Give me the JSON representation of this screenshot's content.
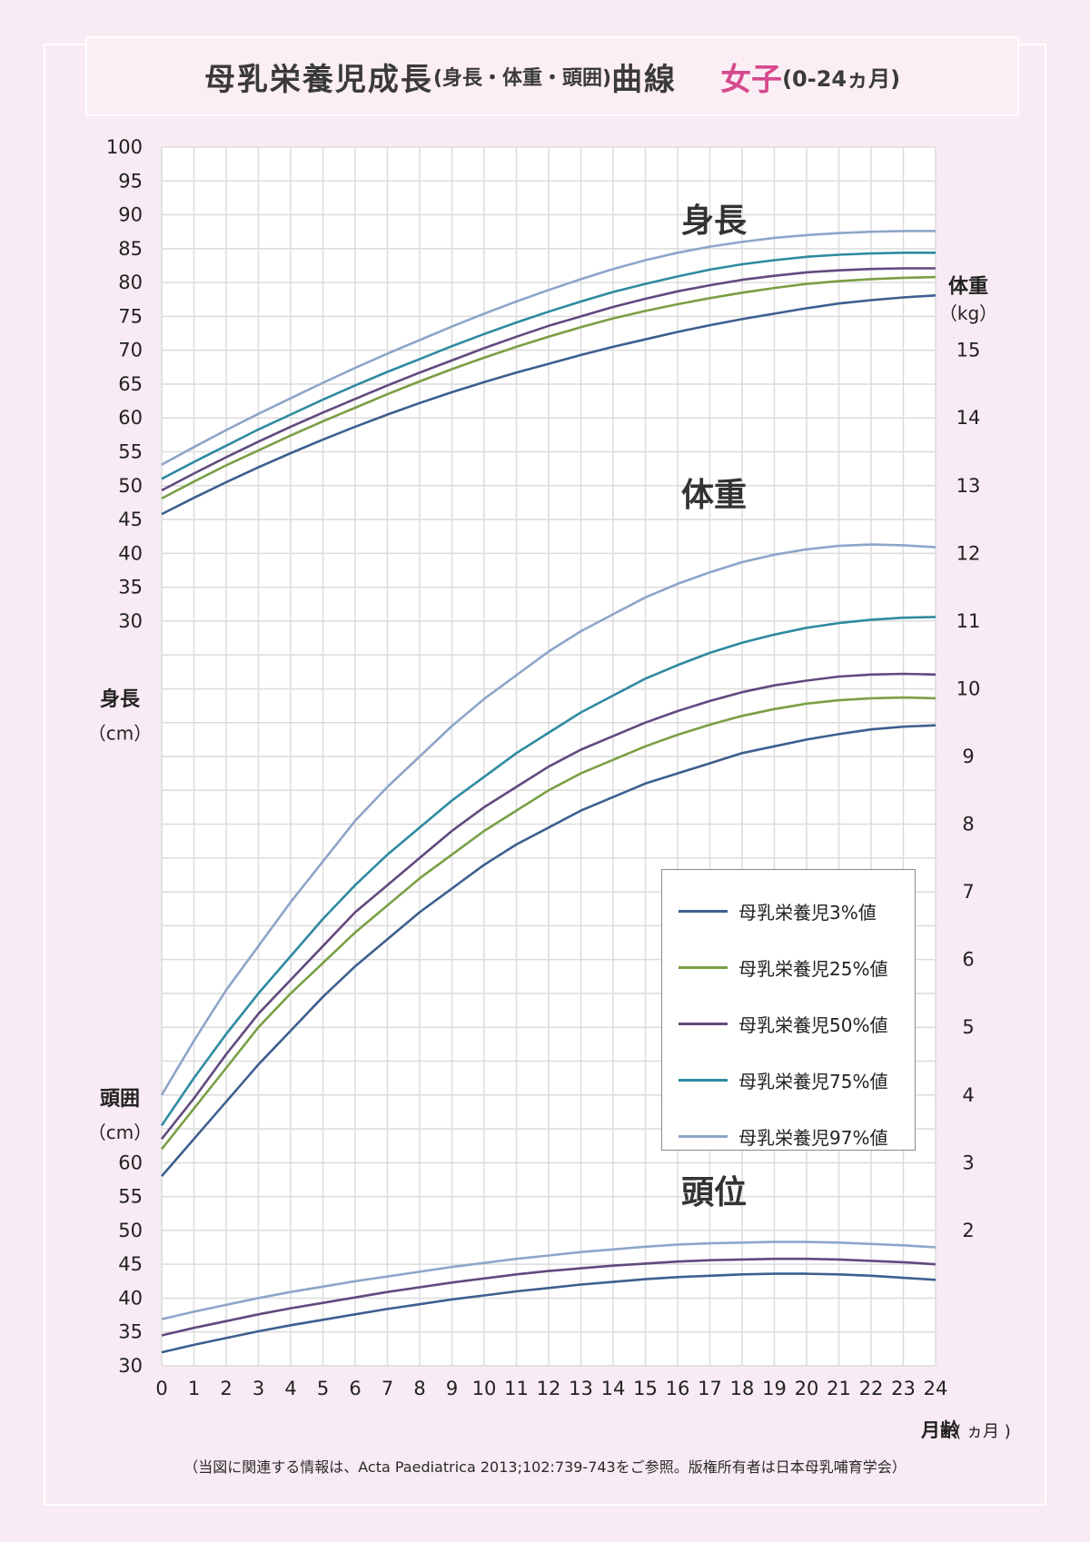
{
  "title": {
    "main": "母乳栄養児成長",
    "paren": "(身長・体重・頭囲)",
    "main2": "曲線",
    "girl": "女子",
    "range": "(0-24ヵ月)"
  },
  "footnote": "（当図に関連する情報は、Acta Paediatrica 2013;102:739-743をご参照。版権所有者は日本母乳哺育学会）",
  "colors": {
    "p3": "#3d5f8f",
    "p25": "#7a9f45",
    "p50": "#62497f",
    "p75": "#2f8aa1",
    "p97": "#8ea5c9",
    "grid": "#dcdcdc",
    "title_accent": "#d74a8e"
  },
  "legend": [
    {
      "label": "母乳栄養児3%値",
      "key": "p3"
    },
    {
      "label": "母乳栄養児25%値",
      "key": "p25"
    },
    {
      "label": "母乳栄養児50%値",
      "key": "p50"
    },
    {
      "label": "母乳栄養児75%値",
      "key": "p75"
    },
    {
      "label": "母乳栄養児97%値",
      "key": "p97"
    }
  ],
  "chart_data": {
    "type": "line",
    "x_label": "月齢",
    "x_unit": "( ヵ月 )",
    "x": [
      0,
      1,
      2,
      3,
      4,
      5,
      6,
      7,
      8,
      9,
      10,
      11,
      12,
      13,
      14,
      15,
      16,
      17,
      18,
      19,
      20,
      21,
      22,
      23,
      24
    ],
    "x_ticks": [
      "0",
      "1",
      "2",
      "3",
      "4",
      "5",
      "6",
      "7",
      "8",
      "9",
      "10",
      "11",
      "12",
      "13",
      "14",
      "15",
      "16",
      "17",
      "18",
      "19",
      "20",
      "21",
      "22",
      "23",
      "24"
    ],
    "left_axis": {
      "height_label": "身長",
      "height_unit": "（cm）",
      "height_ticks": [
        "100",
        "95",
        "90",
        "85",
        "80",
        "75",
        "70",
        "65",
        "60",
        "55",
        "50",
        "45",
        "40",
        "35",
        "30"
      ],
      "head_label": "頭囲",
      "head_unit": "（cm）",
      "head_ticks": [
        "60",
        "55",
        "50",
        "45",
        "40",
        "35",
        "30"
      ]
    },
    "right_axis": {
      "label": "体重",
      "unit": "（kg）",
      "ticks": [
        "15",
        "14",
        "13",
        "12",
        "11",
        "10",
        "9",
        "8",
        "7",
        "6",
        "5",
        "4",
        "3",
        "2"
      ]
    },
    "section_labels": {
      "height": "身長",
      "weight": "体重",
      "head": "頭位"
    },
    "height": {
      "unit": "cm",
      "ylim": [
        30,
        100
      ],
      "series": [
        {
          "key": "p3",
          "name": "母乳栄養児3%値",
          "values": [
            45.8,
            48.2,
            50.5,
            52.7,
            54.8,
            56.8,
            58.7,
            60.5,
            62.2,
            63.8,
            65.3,
            66.7,
            68.0,
            69.3,
            70.5,
            71.6,
            72.7,
            73.7,
            74.6,
            75.4,
            76.2,
            76.9,
            77.4,
            77.8,
            78.1
          ]
        },
        {
          "key": "p25",
          "name": "母乳栄養児25%値",
          "values": [
            48.1,
            50.6,
            53.0,
            55.2,
            57.4,
            59.5,
            61.5,
            63.5,
            65.4,
            67.2,
            68.9,
            70.5,
            72.0,
            73.4,
            74.7,
            75.8,
            76.8,
            77.7,
            78.5,
            79.2,
            79.8,
            80.2,
            80.5,
            80.7,
            80.8
          ]
        },
        {
          "key": "p50",
          "name": "母乳栄養児50%値",
          "values": [
            49.3,
            51.8,
            54.2,
            56.5,
            58.7,
            60.8,
            62.8,
            64.8,
            66.7,
            68.5,
            70.3,
            72.0,
            73.6,
            75.0,
            76.4,
            77.6,
            78.7,
            79.6,
            80.4,
            81.0,
            81.5,
            81.8,
            82.0,
            82.1,
            82.1
          ]
        },
        {
          "key": "p75",
          "name": "母乳栄養児75%値",
          "values": [
            51.0,
            53.5,
            55.9,
            58.3,
            60.5,
            62.7,
            64.8,
            66.8,
            68.7,
            70.6,
            72.4,
            74.1,
            75.7,
            77.2,
            78.6,
            79.8,
            80.9,
            81.9,
            82.7,
            83.3,
            83.8,
            84.1,
            84.3,
            84.4,
            84.4
          ]
        },
        {
          "key": "p97",
          "name": "母乳栄養児97%値",
          "values": [
            53.1,
            55.7,
            58.2,
            60.6,
            62.9,
            65.2,
            67.4,
            69.5,
            71.5,
            73.5,
            75.4,
            77.2,
            78.9,
            80.5,
            82.0,
            83.3,
            84.4,
            85.3,
            86.0,
            86.6,
            87.0,
            87.3,
            87.5,
            87.6,
            87.6
          ]
        }
      ]
    },
    "weight": {
      "unit": "kg",
      "ylim": [
        0,
        15
      ],
      "series": [
        {
          "key": "p3",
          "name": "母乳栄養児3%値",
          "values": [
            2.8,
            3.35,
            3.9,
            4.45,
            4.95,
            5.45,
            5.9,
            6.3,
            6.7,
            7.05,
            7.4,
            7.7,
            7.95,
            8.2,
            8.4,
            8.6,
            8.75,
            8.9,
            9.05,
            9.15,
            9.25,
            9.33,
            9.4,
            9.44,
            9.46
          ]
        },
        {
          "key": "p25",
          "name": "母乳栄養児25%値",
          "values": [
            3.2,
            3.8,
            4.4,
            5.0,
            5.5,
            5.95,
            6.4,
            6.8,
            7.2,
            7.55,
            7.9,
            8.2,
            8.5,
            8.75,
            8.95,
            9.15,
            9.32,
            9.47,
            9.6,
            9.7,
            9.78,
            9.83,
            9.86,
            9.87,
            9.86
          ]
        },
        {
          "key": "p50",
          "name": "母乳栄養児50%値",
          "values": [
            3.35,
            3.95,
            4.6,
            5.2,
            5.7,
            6.2,
            6.7,
            7.1,
            7.5,
            7.9,
            8.25,
            8.55,
            8.85,
            9.1,
            9.3,
            9.5,
            9.67,
            9.82,
            9.95,
            10.05,
            10.12,
            10.18,
            10.21,
            10.22,
            10.21
          ]
        },
        {
          "key": "p75",
          "name": "母乳栄養児75%値",
          "values": [
            3.55,
            4.25,
            4.9,
            5.5,
            6.05,
            6.6,
            7.1,
            7.55,
            7.95,
            8.35,
            8.7,
            9.05,
            9.35,
            9.65,
            9.9,
            10.15,
            10.35,
            10.53,
            10.68,
            10.8,
            10.9,
            10.97,
            11.02,
            11.05,
            11.06
          ]
        },
        {
          "key": "p97",
          "name": "母乳栄養児97%値",
          "values": [
            4.0,
            4.8,
            5.55,
            6.2,
            6.85,
            7.45,
            8.05,
            8.55,
            9.0,
            9.45,
            9.85,
            10.2,
            10.55,
            10.85,
            11.1,
            11.35,
            11.55,
            11.72,
            11.87,
            11.98,
            12.06,
            12.11,
            12.13,
            12.12,
            12.09
          ]
        }
      ]
    },
    "head": {
      "unit": "cm",
      "ylim": [
        30,
        60
      ],
      "series": [
        {
          "key": "p3",
          "name": "母乳栄養児3%値",
          "values": [
            32.0,
            33.1,
            34.1,
            35.1,
            36.0,
            36.8,
            37.6,
            38.4,
            39.1,
            39.8,
            40.4,
            41.0,
            41.5,
            42.0,
            42.4,
            42.8,
            43.1,
            43.3,
            43.5,
            43.6,
            43.6,
            43.5,
            43.3,
            43.0,
            42.7
          ]
        },
        {
          "key": "p50",
          "name": "母乳栄養児50%値",
          "values": [
            34.5,
            35.6,
            36.6,
            37.6,
            38.5,
            39.3,
            40.1,
            40.9,
            41.6,
            42.3,
            42.9,
            43.5,
            44.0,
            44.4,
            44.8,
            45.1,
            45.4,
            45.6,
            45.7,
            45.8,
            45.8,
            45.7,
            45.5,
            45.3,
            45.0
          ]
        },
        {
          "key": "p97",
          "name": "母乳栄養児97%値",
          "values": [
            36.9,
            38.0,
            39.0,
            40.0,
            40.9,
            41.7,
            42.5,
            43.2,
            43.9,
            44.6,
            45.2,
            45.8,
            46.3,
            46.8,
            47.2,
            47.6,
            47.9,
            48.1,
            48.2,
            48.3,
            48.3,
            48.2,
            48.0,
            47.8,
            47.5
          ]
        }
      ]
    }
  }
}
